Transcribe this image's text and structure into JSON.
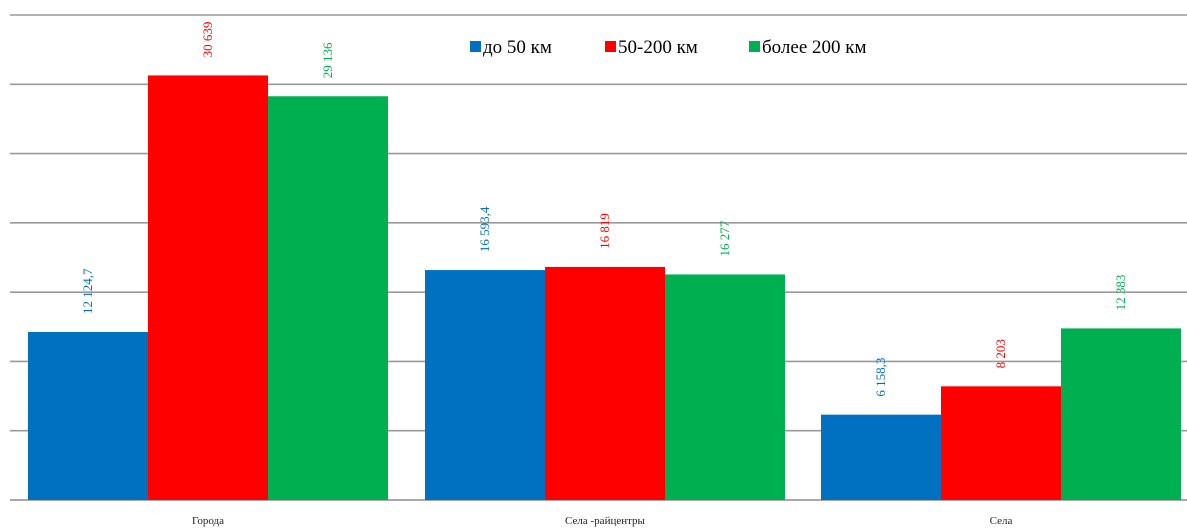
{
  "chart_data": {
    "type": "bar",
    "title": "",
    "xlabel": "",
    "ylabel": "",
    "ylim": [
      0,
      35000
    ],
    "grid": true,
    "legend_position": "top-right",
    "categories": [
      "Города",
      "Села -райцентры",
      "Села"
    ],
    "series": [
      {
        "name": "до 50 км",
        "color": "#0070C0",
        "values": [
          12124.7,
          16593.4,
          6158.3
        ],
        "labels": [
          "12 124,7",
          "16 593,4",
          "6 158,3"
        ]
      },
      {
        "name": "50-200 км",
        "color": "#FF0000",
        "values": [
          30639,
          16819,
          8203
        ],
        "labels": [
          "30 639",
          "16 819",
          "8 203"
        ]
      },
      {
        "name": "более 200 км",
        "color": "#00B050",
        "values": [
          29136,
          16277,
          12383
        ],
        "labels": [
          "29 136",
          "16 277",
          "12 383"
        ]
      }
    ]
  }
}
